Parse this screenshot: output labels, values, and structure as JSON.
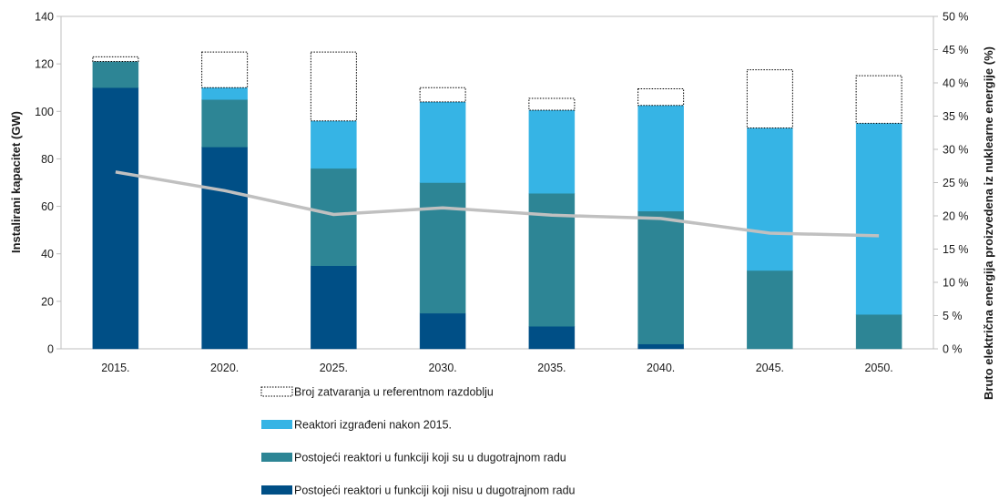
{
  "chart_data": {
    "type": "bar",
    "stacked": true,
    "categories": [
      "2015.",
      "2020.",
      "2025.",
      "2030.",
      "2035.",
      "2040.",
      "2045.",
      "2050."
    ],
    "ylabel": "Instalirani kapacitet (GW)",
    "y2label": "Bruto električna energija proizvedena iz nuklearne energije (%)",
    "ylim": [
      0,
      140
    ],
    "yticks": [
      "0",
      "20",
      "40",
      "60",
      "80",
      "100",
      "120",
      "140"
    ],
    "y2lim": [
      0,
      50
    ],
    "y2ticks": [
      "0 %",
      "5 %",
      "10 %",
      "15 %",
      "20 %",
      "25 %",
      "30 %",
      "35 %",
      "40 %",
      "45 %",
      "50 %"
    ],
    "grid": false,
    "legend_position": "bottom",
    "series": [
      {
        "name": "Postojeći reaktori u funkciji koji nisu u dugotrajnom radu",
        "color": "#004f86",
        "values": [
          110,
          85,
          35,
          15,
          9.5,
          2,
          0,
          0
        ]
      },
      {
        "name": "Postojeći reaktori u funkciji koji su u dugotrajnom radu",
        "color": "#2d8595",
        "values": [
          11,
          20,
          41,
          55,
          56,
          56,
          33,
          14.5
        ]
      },
      {
        "name": "Reaktori izgrađeni nakon 2015.",
        "color": "#36b4e5",
        "values": [
          0,
          5,
          20,
          34,
          35,
          44.5,
          60,
          80.5
        ]
      },
      {
        "name": "Broj zatvaranja u referentnom razdoblju",
        "color": "#ffffff",
        "border": "dotted",
        "values": [
          2,
          15,
          29,
          6,
          5,
          7,
          24.5,
          20
        ]
      }
    ],
    "line_series": {
      "axis": "secondary",
      "color": "#c0c0c0",
      "values": [
        26.6,
        23.8,
        20.2,
        21.2,
        20.1,
        19.6,
        17.4,
        17.0
      ]
    }
  }
}
